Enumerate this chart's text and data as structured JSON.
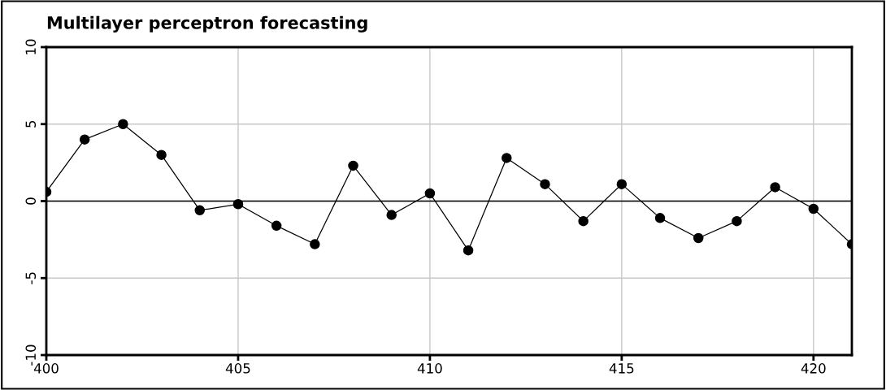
{
  "chart_data": {
    "type": "line",
    "title": "Multilayer perceptron forecasting",
    "x": [
      400,
      401,
      402,
      403,
      404,
      405,
      406,
      407,
      408,
      409,
      410,
      411,
      412,
      413,
      414,
      415,
      416,
      417,
      418,
      419,
      420,
      421
    ],
    "series": [
      {
        "color": "#000000",
        "values": [
          0.6,
          4.0,
          5.0,
          3.0,
          -0.6,
          -0.2,
          -1.6,
          -2.8,
          2.3,
          -0.9,
          0.5,
          -3.2,
          2.8,
          1.1,
          -1.3,
          1.1,
          -1.1,
          -2.4,
          -1.3,
          0.9,
          -0.5,
          -2.8
        ]
      }
    ],
    "xlim": [
      400,
      421
    ],
    "xticks": [
      400,
      405,
      410,
      415,
      420
    ],
    "ylim": [
      -10,
      10
    ],
    "yticks": [
      -10,
      -5,
      0,
      5,
      10
    ],
    "ref_lines": [
      {
        "axis": "y",
        "value": 0,
        "color": "#000000"
      }
    ],
    "grid": true,
    "marker": "circle",
    "line_style": "solid"
  }
}
